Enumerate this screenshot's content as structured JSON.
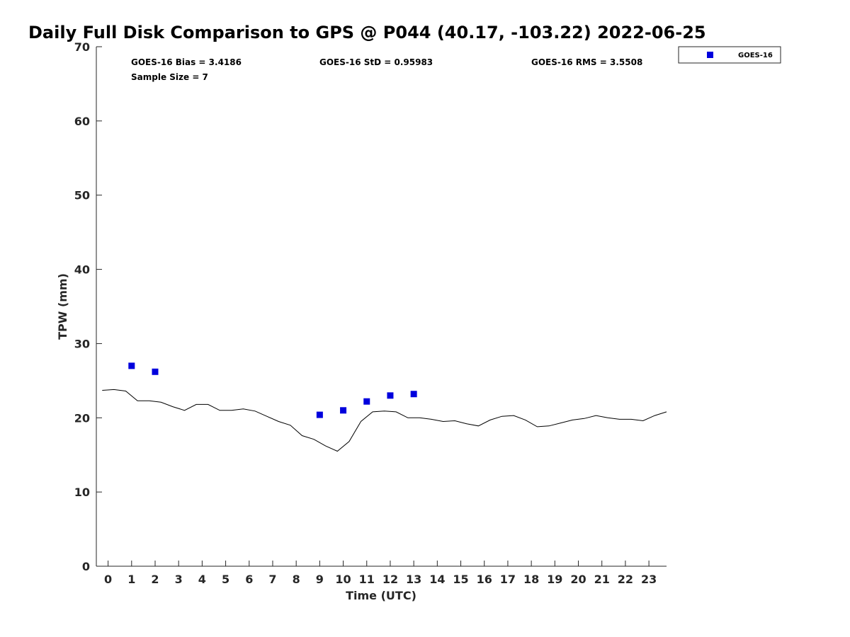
{
  "chart_data": {
    "type": "line",
    "title": "Daily Full Disk Comparison to GPS @ P044 (40.17, -103.22) 2022-06-25",
    "xlabel": "Time (UTC)",
    "ylabel": "TPW (mm)",
    "xlim": [
      -0.5,
      23.75
    ],
    "ylim": [
      0,
      70
    ],
    "x_ticks": [
      "0",
      "1",
      "2",
      "3",
      "4",
      "5",
      "6",
      "7",
      "8",
      "9",
      "10",
      "11",
      "12",
      "13",
      "14",
      "15",
      "16",
      "17",
      "18",
      "19",
      "20",
      "21",
      "22",
      "23"
    ],
    "y_ticks": [
      "0",
      "10",
      "20",
      "30",
      "40",
      "50",
      "60",
      "70"
    ],
    "grid": false,
    "legend_position": "outside-top-right",
    "stats": [
      {
        "label": "GOES-16 Bias = 3.4186"
      },
      {
        "label": "GOES-16 StD = 0.95983"
      },
      {
        "label": "GOES-16 RMS = 3.5508"
      },
      {
        "label": "Sample Size = 7"
      }
    ],
    "series": [
      {
        "kind": "line",
        "color": "#000000",
        "x": [
          -0.25,
          0.25,
          0.75,
          1.25,
          1.75,
          2.25,
          2.75,
          3.25,
          3.75,
          4.25,
          4.75,
          5.25,
          5.75,
          6.25,
          6.75,
          7.25,
          7.75,
          8.25,
          8.75,
          9.25,
          9.75,
          10.25,
          10.75,
          11.25,
          11.75,
          12.25,
          12.75,
          13.25,
          13.75,
          14.25,
          14.75,
          15.25,
          15.75,
          16.25,
          16.75,
          17.25,
          17.75,
          18.25,
          18.75,
          19.25,
          19.75,
          20.25,
          20.75,
          21.25,
          21.75,
          22.25,
          22.75,
          23.25,
          23.75
        ],
        "y": [
          23.7,
          23.8,
          23.6,
          22.3,
          22.3,
          22.1,
          21.5,
          21.0,
          21.8,
          21.8,
          21.0,
          21.0,
          21.2,
          20.9,
          20.2,
          19.5,
          19.0,
          17.6,
          17.1,
          16.2,
          15.5,
          16.8,
          19.5,
          20.8,
          20.9,
          20.8,
          20.0,
          20.0,
          19.8,
          19.5,
          19.6,
          19.2,
          18.9,
          19.7,
          20.2,
          20.3,
          19.7,
          18.8,
          18.9,
          19.3,
          19.7,
          19.9,
          20.3,
          20.0,
          19.8,
          19.8,
          19.6,
          20.3,
          20.8
        ]
      },
      {
        "kind": "scatter",
        "name": "GOES-16",
        "color": "#0000dd",
        "marker": "square",
        "x": [
          1,
          2,
          9,
          10,
          11,
          12,
          13
        ],
        "y": [
          27.0,
          26.2,
          20.4,
          21.0,
          22.2,
          23.0,
          23.2
        ]
      }
    ]
  }
}
